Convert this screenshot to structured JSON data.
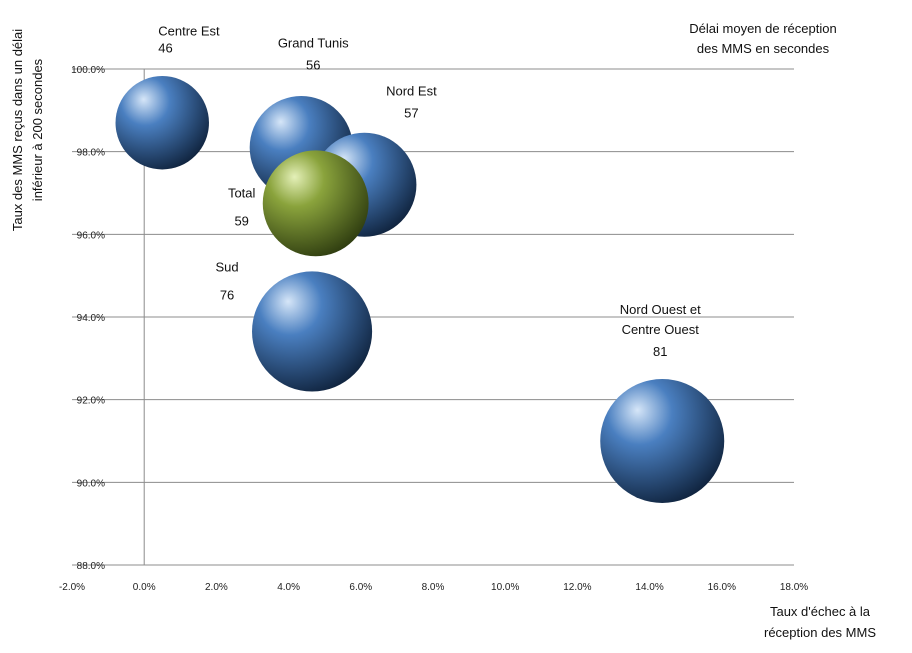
{
  "chart_data": {
    "type": "bubble",
    "legend_note": [
      "Délai moyen de réception",
      "des MMS en secondes"
    ],
    "xlabel": [
      "Taux d'échec à la",
      "réception des MMS"
    ],
    "ylabel": [
      "Taux des MMS reçus dans un délai",
      "inférieur à 200 secondes"
    ],
    "xlim": [
      -0.02,
      0.18
    ],
    "ylim": [
      0.88,
      1.0
    ],
    "x_ticks": [
      "-2.0%",
      "0.0%",
      "2.0%",
      "4.0%",
      "6.0%",
      "8.0%",
      "10.0%",
      "12.0%",
      "14.0%",
      "16.0%",
      "18.0%"
    ],
    "y_ticks": [
      "88.0%",
      "90.0%",
      "92.0%",
      "94.0%",
      "96.0%",
      "98.0%",
      "100.0%"
    ],
    "grid": "horizontal",
    "series": [
      {
        "name": "Centre Est",
        "label_lines": [
          "Centre Est"
        ],
        "x": 0.005,
        "y": 0.987,
        "value": 46,
        "color": "#4a7fc0"
      },
      {
        "name": "Grand Tunis",
        "label_lines": [
          "Grand Tunis"
        ],
        "x": 0.0435,
        "y": 0.981,
        "value": 56,
        "color": "#4a7fc0"
      },
      {
        "name": "Nord Est",
        "label_lines": [
          "Nord Est"
        ],
        "x": 0.061,
        "y": 0.972,
        "value": 57,
        "color": "#4a7fc0"
      },
      {
        "name": "Total",
        "label_lines": [
          "Total"
        ],
        "x": 0.0475,
        "y": 0.9675,
        "value": 59,
        "color": "#8aa33c"
      },
      {
        "name": "Sud",
        "label_lines": [
          "Sud"
        ],
        "x": 0.0465,
        "y": 0.9365,
        "value": 76,
        "color": "#4a7fc0"
      },
      {
        "name": "Nord Ouest et Centre Ouest",
        "label_lines": [
          "Nord Ouest  et",
          "Centre Ouest"
        ],
        "x": 0.1435,
        "y": 0.91,
        "value": 81,
        "color": "#4a7fc0"
      }
    ]
  }
}
